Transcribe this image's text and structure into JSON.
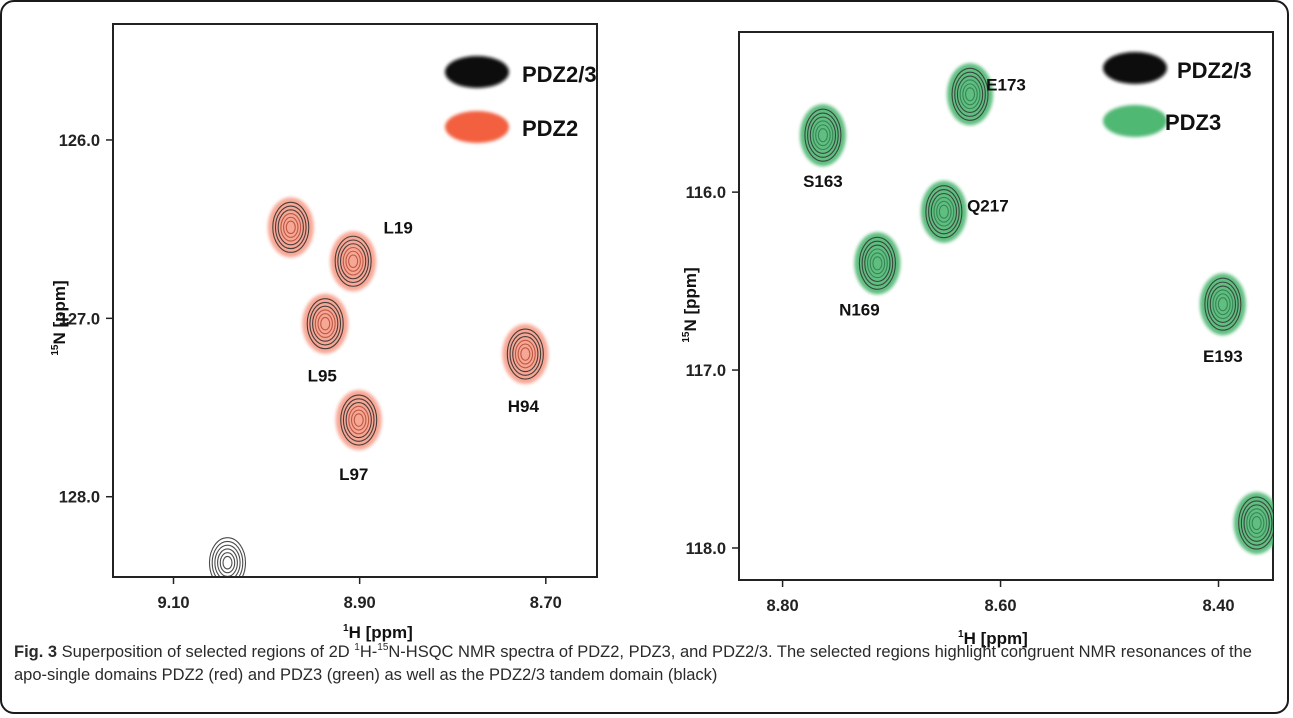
{
  "chart_data": [
    {
      "type": "scatter",
      "xlabel_sup": "1",
      "xlabel": "H [ppm]",
      "ylabel_sup": "15",
      "ylabel": "N [ppm]",
      "xlim": [
        9.165,
        8.645
      ],
      "ylim": [
        125.35,
        128.45
      ],
      "xticks": [
        "9.10",
        "8.90",
        "8.70"
      ],
      "yticks": [
        "126.0",
        "127.0",
        "128.0"
      ],
      "legend": [
        {
          "name": "PDZ2/3",
          "color": "#0a0a0a"
        },
        {
          "name": "PDZ2",
          "color": "#f26040"
        }
      ],
      "peaks": [
        {
          "label": "",
          "x": 8.974,
          "y": 126.49,
          "overlay": true
        },
        {
          "label": "L19",
          "x": 8.907,
          "y": 126.68,
          "overlay": true
        },
        {
          "label": "L95",
          "x": 8.937,
          "y": 127.03,
          "overlay": true
        },
        {
          "label": "H94",
          "x": 8.722,
          "y": 127.2,
          "overlay": true
        },
        {
          "label": "L97",
          "x": 8.901,
          "y": 127.57,
          "overlay": true
        },
        {
          "label": "",
          "x": 9.042,
          "y": 128.37,
          "overlay": false
        }
      ]
    },
    {
      "type": "scatter",
      "xlabel_sup": "1",
      "xlabel": "H [ppm]",
      "ylabel_sup": "15",
      "ylabel": "N [ppm]",
      "xlim": [
        8.84,
        8.35
      ],
      "ylim": [
        115.1,
        118.18
      ],
      "xticks": [
        "8.80",
        "8.60",
        "8.40"
      ],
      "yticks": [
        "116.0",
        "117.0",
        "118.0"
      ],
      "legend": [
        {
          "name": "PDZ2/3",
          "color": "#0a0a0a"
        },
        {
          "name": "PDZ3",
          "color": "#4fb873"
        }
      ],
      "peaks": [
        {
          "label": "S163",
          "x": 8.763,
          "y": 115.68,
          "overlay": true
        },
        {
          "label": "E173",
          "x": 8.628,
          "y": 115.45,
          "overlay": true
        },
        {
          "label": "Q217",
          "x": 8.652,
          "y": 116.11,
          "overlay": true
        },
        {
          "label": "N169",
          "x": 8.713,
          "y": 116.4,
          "overlay": true
        },
        {
          "label": "E193",
          "x": 8.396,
          "y": 116.63,
          "overlay": true
        },
        {
          "label": "",
          "x": 8.365,
          "y": 117.86,
          "overlay": true
        }
      ]
    }
  ],
  "caption": {
    "label": "Fig. 3",
    "t1": " Superposition of selected regions of 2D ",
    "s1": "1",
    "t2": "H-",
    "s2": "15",
    "t3": "N-HSQC NMR spectra of PDZ2, PDZ3, and PDZ2/3. The selected regions highlight congruent NMR resonances of the apo-single domains PDZ2 (red) and PDZ3 (green) as well as the PDZ2/3 tandem domain (black)"
  }
}
